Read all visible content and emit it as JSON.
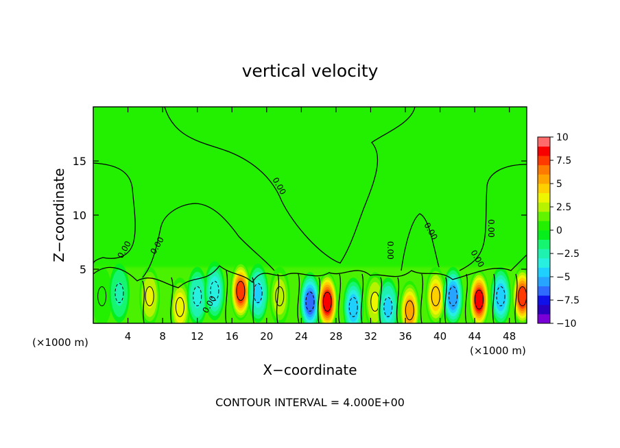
{
  "chart_data": {
    "type": "heatmap",
    "title": "vertical velocity",
    "xlabel": "X−coordinate",
    "ylabel": "Z−coordinate",
    "x_unit_left": "(×1000 m)",
    "x_unit_right": "(×1000 m)",
    "xlim": [
      0,
      50
    ],
    "ylim": [
      0,
      20
    ],
    "x_ticks": [
      4,
      8,
      12,
      16,
      20,
      24,
      28,
      32,
      36,
      40,
      44,
      48
    ],
    "y_ticks": [
      5,
      10,
      15
    ],
    "colorbar": {
      "ticks": [
        "10",
        "7.5",
        "5",
        "2.5",
        "0",
        "−2.5",
        "−5",
        "−7.5",
        "−10"
      ],
      "levels": [
        -10,
        -9,
        -8,
        -7,
        -6,
        -5,
        -4,
        -3,
        -2,
        -1,
        0,
        1,
        2,
        3,
        4,
        5,
        6,
        7,
        8,
        9,
        10
      ],
      "colors": [
        "#7a00d8",
        "#2a00c0",
        "#1010e8",
        "#2f6bff",
        "#27a4ff",
        "#1fd0ff",
        "#27f0e0",
        "#1ff2b0",
        "#16f570",
        "#06ef1c",
        "#22f000",
        "#62f300",
        "#b7f300",
        "#eef500",
        "#ffd000",
        "#ffa500",
        "#ff7a00",
        "#ff3a00",
        "#f80000",
        "#ff6a6a"
      ]
    },
    "contour_label": "0.00",
    "contour_interval_text": "CONTOUR INTERVAL = 4.000E+00",
    "cells": [
      {
        "x": 1,
        "z": 2.5,
        "w": 1.0
      },
      {
        "x": 3,
        "z": 2.8,
        "w": -2.5
      },
      {
        "x": 6.5,
        "z": 2.5,
        "w": 3.5
      },
      {
        "x": 10,
        "z": 1.5,
        "w": 4.0
      },
      {
        "x": 12,
        "z": 2.5,
        "w": -3.5
      },
      {
        "x": 14,
        "z": 3.0,
        "w": -4.0
      },
      {
        "x": 17,
        "z": 3.0,
        "w": 8.0
      },
      {
        "x": 19,
        "z": 2.8,
        "w": -4.5
      },
      {
        "x": 21.5,
        "z": 2.5,
        "w": 3.0
      },
      {
        "x": 25,
        "z": 2.0,
        "w": -7.0
      },
      {
        "x": 27,
        "z": 2.0,
        "w": 9.0
      },
      {
        "x": 30,
        "z": 1.5,
        "w": -5.0
      },
      {
        "x": 32.5,
        "z": 2.0,
        "w": 3.5
      },
      {
        "x": 34,
        "z": 1.5,
        "w": -4.5
      },
      {
        "x": 36.5,
        "z": 1.2,
        "w": 6.0
      },
      {
        "x": 39.5,
        "z": 2.5,
        "w": 5.0
      },
      {
        "x": 41.5,
        "z": 2.5,
        "w": -6.0
      },
      {
        "x": 44.5,
        "z": 2.2,
        "w": 9.0
      },
      {
        "x": 47,
        "z": 2.5,
        "w": -5.0
      },
      {
        "x": 49.5,
        "z": 2.5,
        "w": 8.0
      }
    ]
  }
}
